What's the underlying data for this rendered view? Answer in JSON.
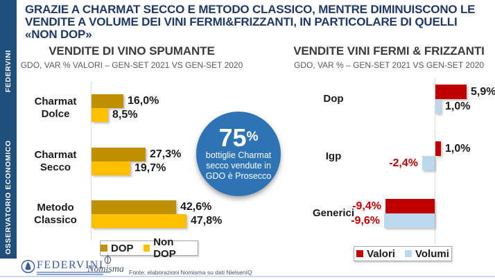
{
  "slide": {
    "title_lines": [
      "GRAZIE A CHARMAT SECCO E METODO CLASSICO, MENTRE DIMINUISCONO LE",
      "VENDITE A VOLUME DEI VINI FERMI&FRIZZANTI, IN PARTICOLARE DI QUELLI",
      "«NON DOP»"
    ],
    "title_color": "#1F3864",
    "sidebar": {
      "text_main": "OSSERVATORIO ECONOMICO",
      "text_brand": "FEDERVINI",
      "color": "#1F4E79"
    },
    "footer": {
      "federvini_logo_text": "FEDERVINI",
      "nomisma_logo_text": "Nomisma",
      "source": "Fonte: elaborazioni Nomisma su dati NielsenIQ"
    }
  },
  "callout": {
    "value": "75",
    "unit": "%",
    "lines": [
      "bottiglie Charmat",
      "secco vendute in",
      "GDO è Prosecco"
    ],
    "color": "#2E74B5"
  },
  "chart_data": [
    {
      "type": "bar",
      "orientation": "horizontal",
      "title": "VENDITE DI VINO SPUMANTE",
      "subtitle": "GDO, VAR % VALORI – GEN-SET 2021 VS GEN-SET 2020",
      "categories": [
        "Charmat Dolce",
        "Charmat Secco",
        "Metodo Classico"
      ],
      "series": [
        {
          "name": "DOP",
          "color": "#BF9000",
          "values": [
            16.0,
            27.3,
            42.6
          ],
          "labels": [
            "16,0%",
            "27,3%",
            "42,6%"
          ]
        },
        {
          "name": "Non DOP",
          "color": "#FFC000",
          "values": [
            8.5,
            19.7,
            47.8
          ],
          "labels": [
            "8,5%",
            "19,7%",
            "47,8%"
          ]
        }
      ],
      "xlim": [
        0,
        50
      ],
      "grid": false,
      "legend_position": "bottom"
    },
    {
      "type": "bar",
      "orientation": "horizontal",
      "title": "VENDITE VINI FERMI & FRIZZANTI",
      "subtitle": "GDO, VAR % – GEN-SET 2021 VS GEN-SET 2020",
      "categories": [
        "Dop",
        "Igp",
        "Generici"
      ],
      "series": [
        {
          "name": "Valori",
          "color": "#C00000",
          "values": [
            5.9,
            1.0,
            -9.4
          ],
          "labels": [
            "5,9%",
            "1,0%",
            "-9,4%"
          ]
        },
        {
          "name": "Volumi",
          "color": "#BDD7EE",
          "values": [
            1.0,
            -2.4,
            -9.6
          ],
          "labels": [
            "1,0%",
            "-2,4%",
            "-9,6%"
          ]
        }
      ],
      "xlim": [
        -10,
        7
      ],
      "negative_label_color": "#C00000",
      "grid": false,
      "legend_position": "bottom"
    }
  ]
}
